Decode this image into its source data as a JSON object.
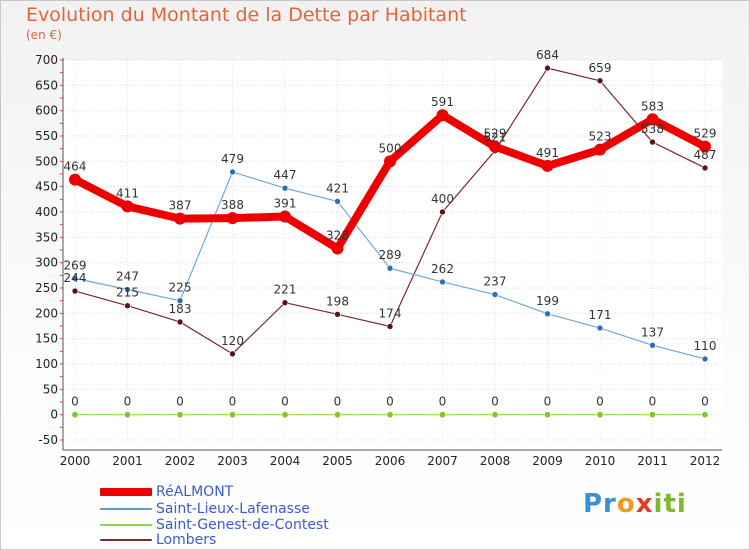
{
  "header": {
    "title": "Evolution du Montant de la Dette par Habitant",
    "subtitle": "(en €)"
  },
  "logo": {
    "text": "Proxiti"
  },
  "chart_data": {
    "type": "line",
    "title": "Evolution du Montant de la Dette par Habitant",
    "subtitle": "(en €)",
    "xlabel": "",
    "ylabel": "",
    "x": [
      "2000",
      "2001",
      "2002",
      "2003",
      "2004",
      "2005",
      "2006",
      "2007",
      "2008",
      "2009",
      "2010",
      "2011",
      "2012"
    ],
    "ylim": [
      -50,
      700
    ],
    "yticks": [
      -50,
      0,
      50,
      100,
      150,
      200,
      250,
      300,
      350,
      400,
      450,
      500,
      550,
      600,
      650,
      700
    ],
    "grid": "horizontal",
    "legend_position": "bottom-left",
    "series": [
      {
        "name": "RéALMONT",
        "color": "#ee0000",
        "values": [
          464,
          411,
          387,
          388,
          391,
          328,
          500,
          591,
          529,
          491,
          523,
          583,
          529
        ]
      },
      {
        "name": "Saint-Lieux-Lafenasse",
        "color": "#5b9bd5",
        "values": [
          269,
          247,
          225,
          479,
          447,
          421,
          289,
          262,
          237,
          199,
          171,
          137,
          110
        ]
      },
      {
        "name": "Saint-Genest-de-Contest",
        "color": "#8fd44a",
        "values": [
          0,
          0,
          0,
          0,
          0,
          0,
          0,
          0,
          0,
          0,
          0,
          0,
          0
        ]
      },
      {
        "name": "Lombers",
        "color": "#7a2a2a",
        "values": [
          244,
          215,
          183,
          120,
          221,
          198,
          174,
          400,
          521,
          684,
          659,
          538,
          487
        ]
      }
    ]
  }
}
